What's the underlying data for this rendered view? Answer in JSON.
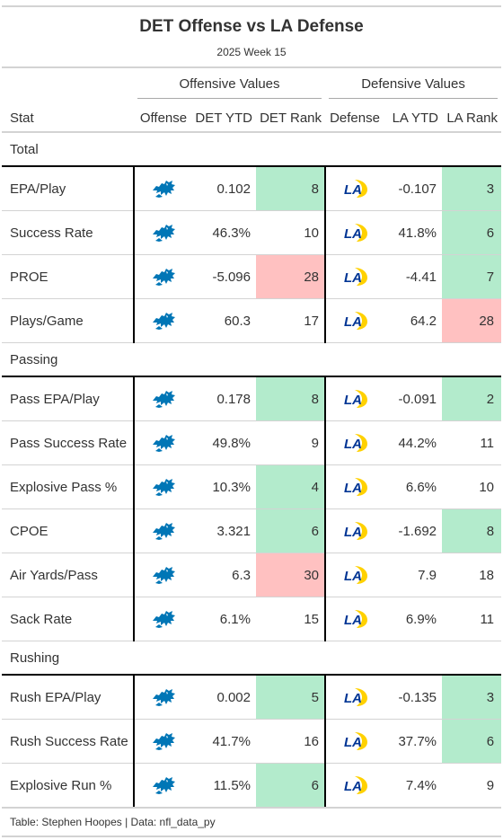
{
  "title": "DET Offense vs LA Defense",
  "subtitle": "2025 Week 15",
  "spanners": {
    "offense": "Offensive Values",
    "defense": "Defensive Values"
  },
  "columns": {
    "stat": "Stat",
    "offense": "Offense",
    "det_ytd": "DET YTD",
    "det_rank": "DET Rank",
    "defense": "Defense",
    "la_ytd": "LA YTD",
    "la_rank": "LA Rank"
  },
  "icons": {
    "offense": "detroit-lions-logo-icon",
    "defense": "los-angeles-rams-logo-icon"
  },
  "colors": {
    "good_rank": "#b3ebcc",
    "bad_rank": "#ffc1c1",
    "lions_blue": "#0076b6",
    "rams_blue": "#003594",
    "rams_gold": "#ffd100"
  },
  "groups": [
    {
      "label": "Total",
      "rows": [
        {
          "stat": "EPA/Play",
          "det_ytd": "0.102",
          "det_rank": "8",
          "det_rank_tier": "good",
          "la_ytd": "-0.107",
          "la_rank": "3",
          "la_rank_tier": "good"
        },
        {
          "stat": "Success Rate",
          "det_ytd": "46.3%",
          "det_rank": "10",
          "det_rank_tier": "none",
          "la_ytd": "41.8%",
          "la_rank": "6",
          "la_rank_tier": "good"
        },
        {
          "stat": "PROE",
          "det_ytd": "-5.096",
          "det_rank": "28",
          "det_rank_tier": "bad",
          "la_ytd": "-4.41",
          "la_rank": "7",
          "la_rank_tier": "good"
        },
        {
          "stat": "Plays/Game",
          "det_ytd": "60.3",
          "det_rank": "17",
          "det_rank_tier": "none",
          "la_ytd": "64.2",
          "la_rank": "28",
          "la_rank_tier": "bad"
        }
      ]
    },
    {
      "label": "Passing",
      "rows": [
        {
          "stat": "Pass EPA/Play",
          "det_ytd": "0.178",
          "det_rank": "8",
          "det_rank_tier": "good",
          "la_ytd": "-0.091",
          "la_rank": "2",
          "la_rank_tier": "good"
        },
        {
          "stat": "Pass Success Rate",
          "det_ytd": "49.8%",
          "det_rank": "9",
          "det_rank_tier": "none",
          "la_ytd": "44.2%",
          "la_rank": "11",
          "la_rank_tier": "none"
        },
        {
          "stat": "Explosive Pass %",
          "det_ytd": "10.3%",
          "det_rank": "4",
          "det_rank_tier": "good",
          "la_ytd": "6.6%",
          "la_rank": "10",
          "la_rank_tier": "none"
        },
        {
          "stat": "CPOE",
          "det_ytd": "3.321",
          "det_rank": "6",
          "det_rank_tier": "good",
          "la_ytd": "-1.692",
          "la_rank": "8",
          "la_rank_tier": "good"
        },
        {
          "stat": "Air Yards/Pass",
          "det_ytd": "6.3",
          "det_rank": "30",
          "det_rank_tier": "bad",
          "la_ytd": "7.9",
          "la_rank": "18",
          "la_rank_tier": "none"
        },
        {
          "stat": "Sack Rate",
          "det_ytd": "6.1%",
          "det_rank": "15",
          "det_rank_tier": "none",
          "la_ytd": "6.9%",
          "la_rank": "11",
          "la_rank_tier": "none"
        }
      ]
    },
    {
      "label": "Rushing",
      "rows": [
        {
          "stat": "Rush EPA/Play",
          "det_ytd": "0.002",
          "det_rank": "5",
          "det_rank_tier": "good",
          "la_ytd": "-0.135",
          "la_rank": "3",
          "la_rank_tier": "good"
        },
        {
          "stat": "Rush Success Rate",
          "det_ytd": "41.7%",
          "det_rank": "16",
          "det_rank_tier": "none",
          "la_ytd": "37.7%",
          "la_rank": "6",
          "la_rank_tier": "good"
        },
        {
          "stat": "Explosive Run %",
          "det_ytd": "11.5%",
          "det_rank": "6",
          "det_rank_tier": "good",
          "la_ytd": "7.4%",
          "la_rank": "9",
          "la_rank_tier": "none"
        }
      ]
    }
  ],
  "footer": "Table: Stephen Hoopes | Data: nfl_data_py"
}
